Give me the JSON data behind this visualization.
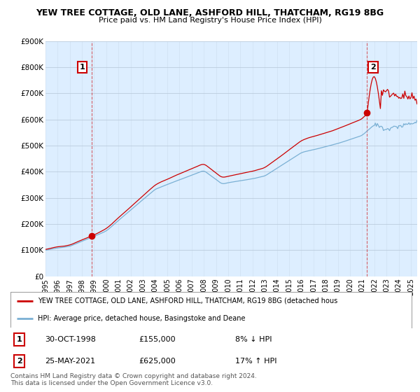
{
  "title_line1": "YEW TREE COTTAGE, OLD LANE, ASHFORD HILL, THATCHAM, RG19 8BG",
  "title_line2": "Price paid vs. HM Land Registry's House Price Index (HPI)",
  "ylim": [
    0,
    900000
  ],
  "yticks": [
    0,
    100000,
    200000,
    300000,
    400000,
    500000,
    600000,
    700000,
    800000,
    900000
  ],
  "ytick_labels": [
    "£0",
    "£100K",
    "£200K",
    "£300K",
    "£400K",
    "£500K",
    "£600K",
    "£700K",
    "£800K",
    "£900K"
  ],
  "sale1_year": 1998.83,
  "sale1_price": 155000,
  "sale2_year": 2021.39,
  "sale2_price": 625000,
  "property_color": "#cc0000",
  "hpi_color": "#7ab0d4",
  "chart_bg_color": "#ddeeff",
  "background_color": "#ffffff",
  "grid_color": "#bbccdd",
  "legend_property_label": "YEW TREE COTTAGE, OLD LANE, ASHFORD HILL, THATCHAM, RG19 8BG (detached hous",
  "legend_hpi_label": "HPI: Average price, detached house, Basingstoke and Deane",
  "footer_line1": "Contains HM Land Registry data © Crown copyright and database right 2024.",
  "footer_line2": "This data is licensed under the Open Government Licence v3.0.",
  "table_rows": [
    {
      "num": "1",
      "date": "30-OCT-1998",
      "price": "£155,000",
      "hpi": "8% ↓ HPI"
    },
    {
      "num": "2",
      "date": "25-MAY-2021",
      "price": "£625,000",
      "hpi": "17% ↑ HPI"
    }
  ]
}
